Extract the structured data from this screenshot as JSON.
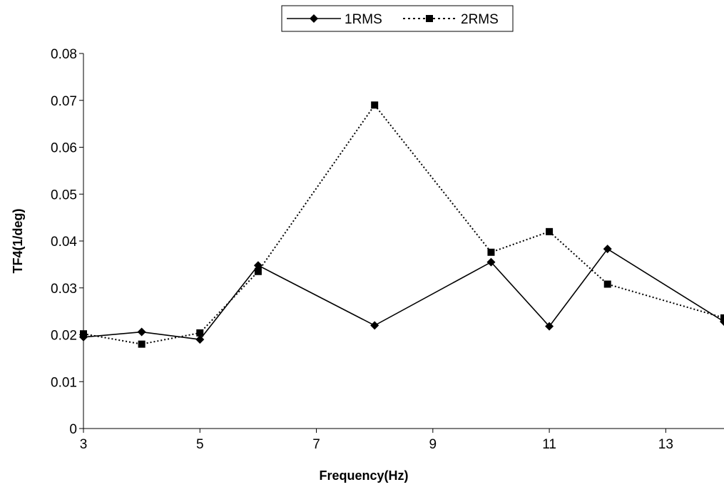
{
  "chart_data": {
    "type": "line",
    "title": "",
    "xlabel": "Frequency(Hz)",
    "ylabel": "TF4(1/deg)",
    "xlim": [
      3,
      14
    ],
    "ylim": [
      0,
      0.08
    ],
    "x_ticks": [
      "3",
      "5",
      "7",
      "9",
      "11",
      "13"
    ],
    "y_ticks": [
      "0",
      "0.01",
      "0.02",
      "0.03",
      "0.04",
      "0.05",
      "0.06",
      "0.07",
      "0.08"
    ],
    "grid": false,
    "legend_position": "top",
    "series": [
      {
        "name": "1RMS",
        "marker": "diamond",
        "line_style": "solid",
        "color": "#000000",
        "x": [
          3,
          4,
          5,
          6,
          8,
          10,
          11,
          12,
          14
        ],
        "y": [
          0.0195,
          0.0206,
          0.019,
          0.0348,
          0.022,
          0.0355,
          0.0218,
          0.0383,
          0.0228
        ]
      },
      {
        "name": "2RMS",
        "marker": "square",
        "line_style": "dotted",
        "color": "#000000",
        "x": [
          3,
          4,
          5,
          6,
          8,
          10,
          11,
          12,
          14
        ],
        "y": [
          0.0202,
          0.018,
          0.0204,
          0.0335,
          0.069,
          0.0376,
          0.042,
          0.0308,
          0.0236
        ]
      }
    ]
  }
}
